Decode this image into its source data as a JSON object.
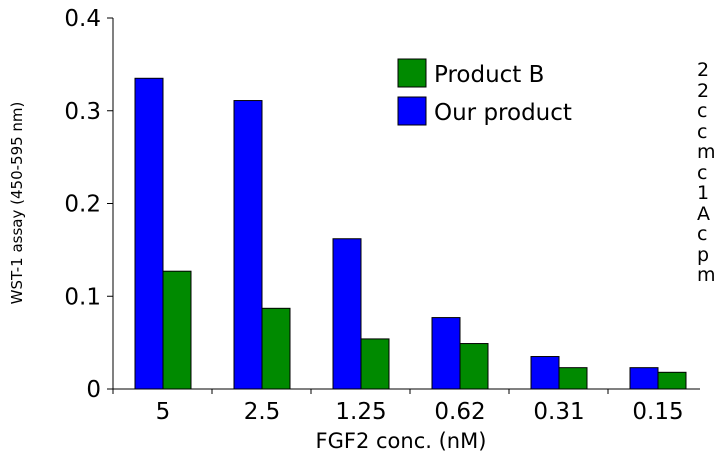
{
  "chart_data": {
    "type": "bar",
    "title": "",
    "xlabel": "FGF2 conc. (nM)",
    "ylabel": "WST-1 assay (450-595 nm)",
    "categories": [
      "5",
      "2.5",
      "1.25",
      "0.62",
      "0.31",
      "0.15"
    ],
    "series": [
      {
        "name": "Our product",
        "color": "#0000ff",
        "values": [
          0.335,
          0.311,
          0.162,
          0.077,
          0.035,
          0.023
        ]
      },
      {
        "name": "Product B",
        "color": "#008a00",
        "values": [
          0.127,
          0.087,
          0.054,
          0.049,
          0.023,
          0.018
        ]
      }
    ],
    "ylim": [
      0,
      0.4
    ],
    "yticks": [
      {
        "value": 0,
        "label": "0"
      },
      {
        "value": 0.1,
        "label": "0.1"
      },
      {
        "value": 0.2,
        "label": "0.2"
      },
      {
        "value": 0.3,
        "label": "0.3"
      },
      {
        "value": 0.4,
        "label": "0.4"
      }
    ],
    "legend": {
      "position": "top-right",
      "order": [
        "Product B",
        "Our product"
      ]
    },
    "grid": false
  },
  "side_text": {
    "lines": [
      "2",
      "2",
      "c",
      "c",
      "m",
      "c",
      "1",
      "A",
      "c",
      "p",
      "m"
    ]
  }
}
